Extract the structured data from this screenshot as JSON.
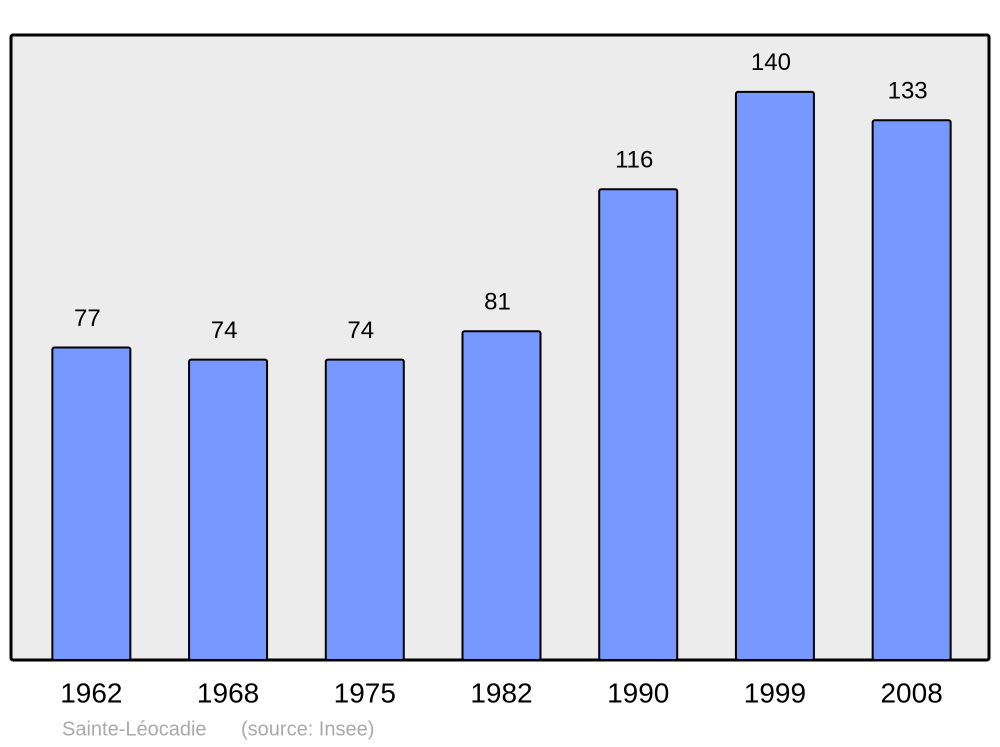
{
  "chart_data": {
    "type": "bar",
    "categories": [
      "1962",
      "1968",
      "1975",
      "1982",
      "1990",
      "1999",
      "2008"
    ],
    "values": [
      77,
      74,
      74,
      81,
      116,
      140,
      133
    ],
    "color": "#7799ff",
    "ylim": [
      0,
      154
    ],
    "caption": "Sainte-Léocadie",
    "source": "(source: Insee)"
  }
}
